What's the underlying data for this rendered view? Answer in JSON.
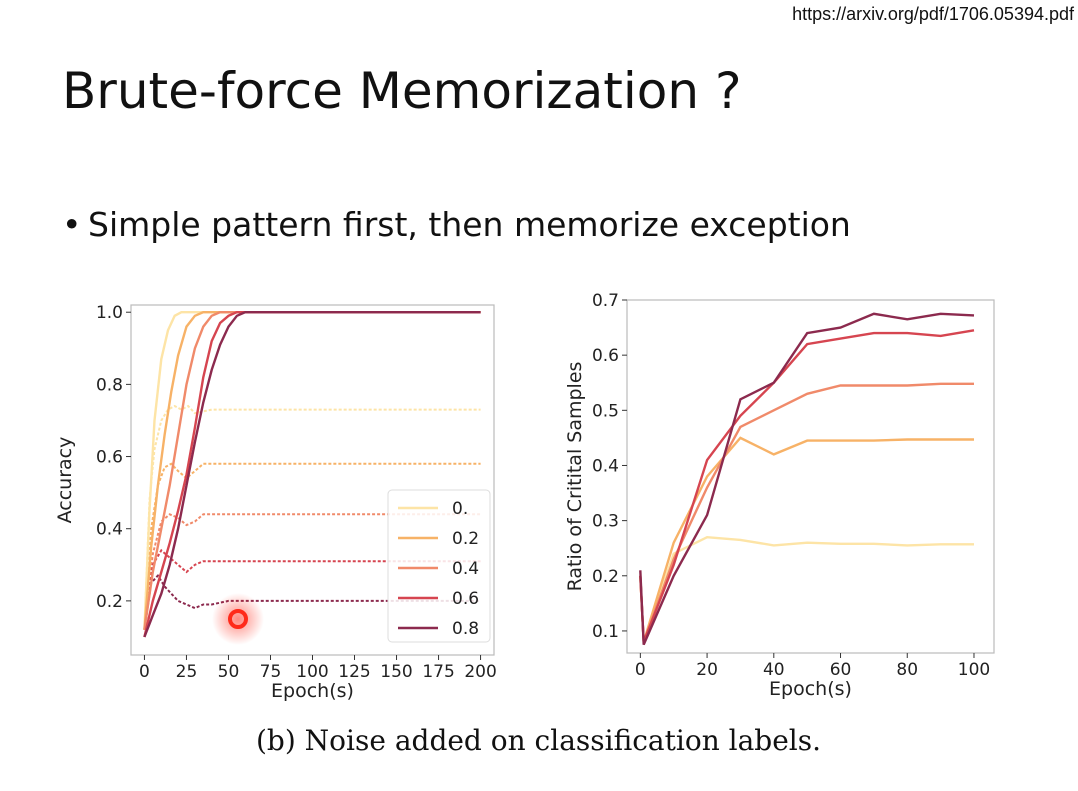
{
  "header": {
    "url": "https://arxiv.org/pdf/1706.05394.pdf",
    "title": "Brute-force Memorization ?"
  },
  "bullets": [
    "Simple pattern first, then memorize exception"
  ],
  "caption": "(b) Noise added on classification labels.",
  "colors": {
    "series": [
      "#fde4a6",
      "#f7b267",
      "#f08a6a",
      "#d64550",
      "#8c2a4e"
    ],
    "cursor": "#ff2a1a"
  },
  "chart_data": [
    {
      "type": "line",
      "xlabel": "Epoch(s)",
      "ylabel": "Accuracy",
      "xlim": [
        -8,
        208
      ],
      "ylim": [
        0.05,
        1.02
      ],
      "xticks": [
        0,
        25,
        50,
        75,
        100,
        125,
        150,
        175,
        200
      ],
      "yticks": [
        0.2,
        0.4,
        0.6,
        0.8,
        1.0
      ],
      "xtick_labels": [
        "0",
        "25",
        "50",
        "75",
        "100",
        "125",
        "150",
        "175",
        "200"
      ],
      "ytick_labels": [
        "0.2",
        "0.4",
        "0.6",
        "0.8",
        "1.0"
      ],
      "legend": {
        "placement": "lower-right",
        "entries": [
          "0.",
          "0.2",
          "0.4",
          "0.6",
          "0.8"
        ]
      },
      "grid": false,
      "series": [
        {
          "name": "0.",
          "train": {
            "x": [
              0,
              3,
              6,
              10,
              14,
              18,
              22,
              26,
              30,
              40,
              60,
              100,
              150,
              200
            ],
            "y": [
              0.12,
              0.45,
              0.7,
              0.87,
              0.95,
              0.99,
              1.0,
              1.0,
              1.0,
              1.0,
              1.0,
              1.0,
              1.0,
              1.0
            ]
          },
          "val": {
            "x": [
              0,
              3,
              6,
              10,
              14,
              18,
              22,
              26,
              30,
              40,
              60,
              100,
              150,
              200
            ],
            "y": [
              0.12,
              0.48,
              0.62,
              0.7,
              0.73,
              0.74,
              0.73,
              0.74,
              0.72,
              0.73,
              0.73,
              0.73,
              0.73,
              0.73
            ]
          }
        },
        {
          "name": "0.2",
          "train": {
            "x": [
              0,
              4,
              8,
              12,
              16,
              20,
              25,
              30,
              35,
              40,
              60,
              100,
              150,
              200
            ],
            "y": [
              0.12,
              0.35,
              0.52,
              0.66,
              0.78,
              0.88,
              0.96,
              0.99,
              1.0,
              1.0,
              1.0,
              1.0,
              1.0,
              1.0
            ]
          },
          "val": {
            "x": [
              0,
              4,
              8,
              12,
              16,
              20,
              25,
              30,
              35,
              40,
              60,
              100,
              150,
              200
            ],
            "y": [
              0.12,
              0.4,
              0.52,
              0.57,
              0.58,
              0.56,
              0.54,
              0.56,
              0.58,
              0.58,
              0.58,
              0.58,
              0.58,
              0.58
            ]
          }
        },
        {
          "name": "0.4",
          "train": {
            "x": [
              0,
              5,
              10,
              15,
              20,
              25,
              30,
              35,
              40,
              45,
              55,
              70,
              100,
              150,
              200
            ],
            "y": [
              0.12,
              0.28,
              0.4,
              0.52,
              0.66,
              0.8,
              0.9,
              0.96,
              0.99,
              1.0,
              1.0,
              1.0,
              1.0,
              1.0,
              1.0
            ]
          },
          "val": {
            "x": [
              0,
              5,
              10,
              15,
              20,
              25,
              30,
              35,
              40,
              45,
              55,
              70,
              100,
              150,
              200
            ],
            "y": [
              0.12,
              0.33,
              0.42,
              0.44,
              0.43,
              0.41,
              0.42,
              0.44,
              0.44,
              0.44,
              0.44,
              0.44,
              0.44,
              0.44,
              0.44
            ]
          }
        },
        {
          "name": "0.6",
          "train": {
            "x": [
              0,
              5,
              10,
              15,
              20,
              25,
              30,
              35,
              40,
              45,
              50,
              55,
              60,
              70,
              100,
              150,
              200
            ],
            "y": [
              0.1,
              0.2,
              0.28,
              0.36,
              0.45,
              0.55,
              0.68,
              0.82,
              0.92,
              0.97,
              0.99,
              1.0,
              1.0,
              1.0,
              1.0,
              1.0,
              1.0
            ]
          },
          "val": {
            "x": [
              0,
              5,
              10,
              15,
              20,
              25,
              30,
              35,
              40,
              45,
              55,
              70,
              100,
              150,
              200
            ],
            "y": [
              0.12,
              0.3,
              0.34,
              0.32,
              0.3,
              0.28,
              0.3,
              0.31,
              0.31,
              0.31,
              0.31,
              0.31,
              0.31,
              0.31,
              0.31
            ]
          }
        },
        {
          "name": "0.8",
          "train": {
            "x": [
              0,
              5,
              10,
              15,
              20,
              25,
              30,
              35,
              40,
              45,
              50,
              55,
              60,
              70,
              100,
              150,
              200
            ],
            "y": [
              0.1,
              0.16,
              0.22,
              0.3,
              0.4,
              0.52,
              0.64,
              0.75,
              0.84,
              0.91,
              0.96,
              0.99,
              1.0,
              1.0,
              1.0,
              1.0,
              1.0
            ]
          },
          "val": {
            "x": [
              0,
              4,
              8,
              12,
              16,
              20,
              25,
              30,
              35,
              40,
              50,
              60,
              80,
              100,
              150,
              200
            ],
            "y": [
              0.12,
              0.25,
              0.27,
              0.24,
              0.22,
              0.2,
              0.19,
              0.18,
              0.19,
              0.19,
              0.2,
              0.2,
              0.2,
              0.2,
              0.2,
              0.2
            ]
          }
        }
      ]
    },
    {
      "type": "line",
      "xlabel": "Epoch(s)",
      "ylabel": "Ratio of Critital Samples",
      "xlim": [
        -4,
        106
      ],
      "ylim": [
        0.06,
        0.7
      ],
      "xticks": [
        0,
        20,
        40,
        60,
        80,
        100
      ],
      "yticks": [
        0.1,
        0.2,
        0.3,
        0.4,
        0.5,
        0.6,
        0.7
      ],
      "xtick_labels": [
        "0",
        "20",
        "40",
        "60",
        "80",
        "100"
      ],
      "ytick_labels": [
        "0.1",
        "0.2",
        "0.3",
        "0.4",
        "0.5",
        "0.6",
        "0.7"
      ],
      "grid": false,
      "series": [
        {
          "name": "0.",
          "x": [
            0,
            1,
            10,
            20,
            30,
            40,
            50,
            60,
            70,
            80,
            90,
            100
          ],
          "y": [
            0.2,
            0.08,
            0.24,
            0.27,
            0.265,
            0.255,
            0.26,
            0.258,
            0.258,
            0.255,
            0.257,
            0.257
          ]
        },
        {
          "name": "0.2",
          "x": [
            0,
            1,
            10,
            20,
            30,
            40,
            50,
            60,
            70,
            80,
            90,
            100
          ],
          "y": [
            0.2,
            0.08,
            0.26,
            0.38,
            0.45,
            0.42,
            0.445,
            0.445,
            0.445,
            0.447,
            0.447,
            0.447
          ]
        },
        {
          "name": "0.4",
          "x": [
            0,
            1,
            10,
            20,
            30,
            40,
            50,
            60,
            70,
            80,
            90,
            100
          ],
          "y": [
            0.2,
            0.08,
            0.23,
            0.36,
            0.47,
            0.5,
            0.53,
            0.545,
            0.545,
            0.545,
            0.548,
            0.548
          ]
        },
        {
          "name": "0.6",
          "x": [
            0,
            1,
            10,
            20,
            30,
            40,
            50,
            60,
            70,
            80,
            90,
            100
          ],
          "y": [
            0.2,
            0.08,
            0.22,
            0.41,
            0.49,
            0.55,
            0.62,
            0.63,
            0.64,
            0.64,
            0.635,
            0.645
          ]
        },
        {
          "name": "0.8",
          "x": [
            0,
            1,
            10,
            20,
            30,
            40,
            50,
            60,
            70,
            80,
            90,
            100
          ],
          "y": [
            0.21,
            0.075,
            0.2,
            0.31,
            0.52,
            0.55,
            0.64,
            0.65,
            0.675,
            0.665,
            0.675,
            0.672
          ]
        }
      ]
    }
  ]
}
